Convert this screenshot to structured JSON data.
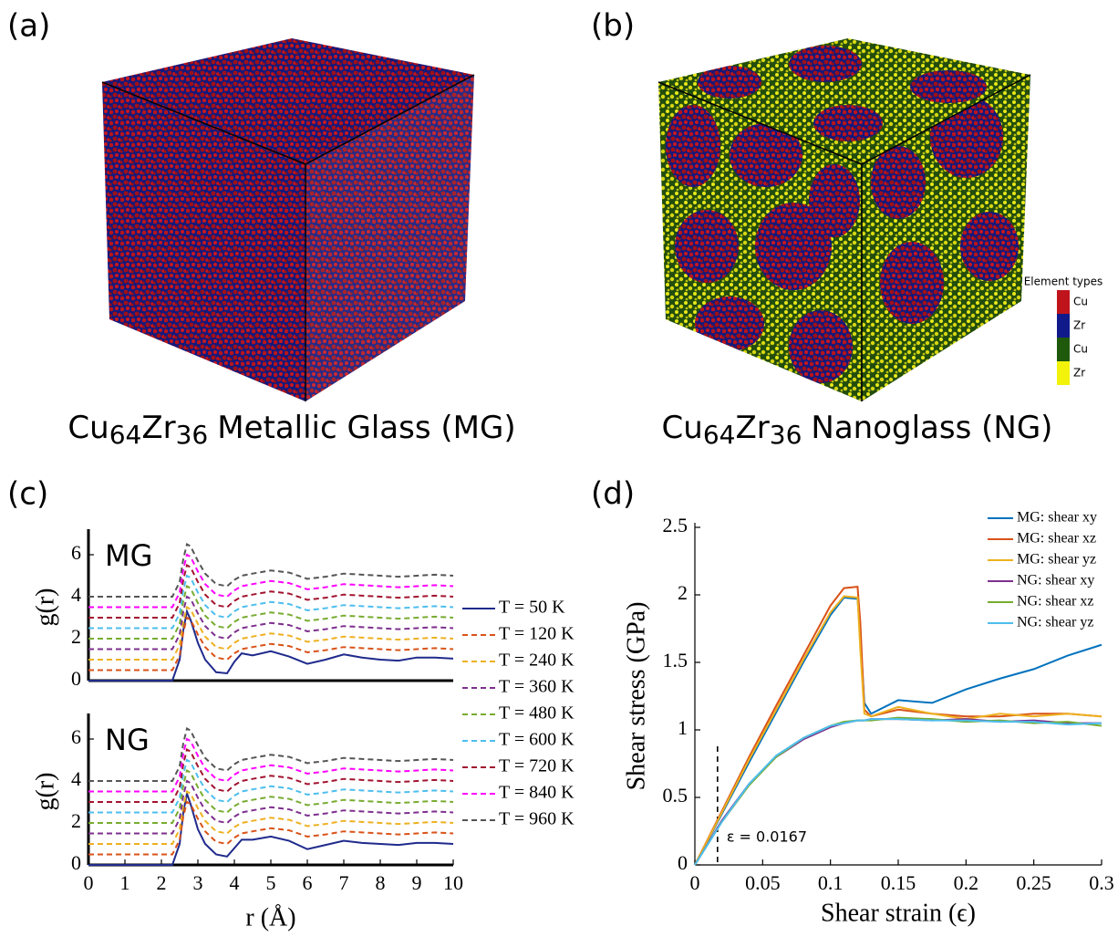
{
  "panels": {
    "a": "(a)",
    "b": "(b)",
    "c": "(c)",
    "d": "(d)"
  },
  "images": {
    "mg_caption": {
      "el1": "Cu",
      "sub1": "64",
      "el2": "Zr",
      "sub2": "36",
      "text": "Metallic Glass (MG)"
    },
    "ng_caption": {
      "el1": "Cu",
      "sub1": "64",
      "el2": "Zr",
      "sub2": "36",
      "text": "Nanoglass (NG)"
    },
    "element_legend": {
      "title": "Element types",
      "entries": [
        {
          "label": "Cu",
          "color": "#c0141c"
        },
        {
          "label": "Zr",
          "color": "#101a8a"
        },
        {
          "label": "Cu",
          "color": "#1f5a0c"
        },
        {
          "label": "Zr",
          "color": "#f2f20a"
        }
      ]
    }
  },
  "chart_data": [
    {
      "type": "line",
      "label": "MG",
      "ylabel": "g(r)",
      "x": [
        0,
        2,
        2.3,
        2.5,
        2.6,
        2.7,
        2.8,
        3.0,
        3.2,
        3.5,
        3.8,
        4.0,
        4.2,
        4.5,
        5.0,
        5.5,
        6.0,
        6.5,
        7.0,
        7.5,
        8.0,
        8.5,
        9.0,
        9.5,
        10
      ],
      "xlim": [
        0,
        10
      ],
      "ylim": [
        0,
        7
      ],
      "yticks": [
        0,
        2,
        4,
        6
      ],
      "series": [
        {
          "name": "T = 50 K",
          "color": "#1f2a8c",
          "values": [
            0,
            0,
            0,
            1.0,
            2.4,
            3.3,
            2.9,
            1.8,
            1.0,
            0.4,
            0.35,
            0.9,
            1.3,
            1.2,
            1.4,
            1.15,
            0.8,
            1.0,
            1.25,
            1.1,
            1.0,
            0.95,
            1.1,
            1.1,
            1.05
          ]
        },
        {
          "name": "T = 120 K",
          "color": "#d95319",
          "linestyle": "--",
          "values": [
            0.5,
            0.5,
            0.5,
            1.2,
            2.3,
            3.0,
            2.9,
            2.2,
            1.6,
            1.1,
            1.0,
            1.3,
            1.5,
            1.6,
            1.75,
            1.65,
            1.35,
            1.45,
            1.6,
            1.55,
            1.5,
            1.45,
            1.5,
            1.55,
            1.5
          ]
        },
        {
          "name": "T = 240 K",
          "color": "#edb120",
          "linestyle": "--",
          "values": [
            1,
            1,
            1,
            1.7,
            2.8,
            3.5,
            3.4,
            2.7,
            2.1,
            1.6,
            1.5,
            1.8,
            2.0,
            2.1,
            2.25,
            2.15,
            1.85,
            1.95,
            2.1,
            2.05,
            2.0,
            1.95,
            2.0,
            2.05,
            2.0
          ]
        },
        {
          "name": "T = 360 K",
          "color": "#7e2f8e",
          "linestyle": "--",
          "values": [
            1.5,
            1.5,
            1.5,
            2.2,
            3.3,
            4.0,
            3.9,
            3.2,
            2.6,
            2.1,
            2.0,
            2.3,
            2.5,
            2.6,
            2.75,
            2.65,
            2.35,
            2.45,
            2.6,
            2.55,
            2.5,
            2.45,
            2.5,
            2.55,
            2.5
          ]
        },
        {
          "name": "T = 480 K",
          "color": "#77ac30",
          "linestyle": "--",
          "values": [
            2,
            2,
            2,
            2.7,
            3.8,
            4.5,
            4.4,
            3.7,
            3.1,
            2.6,
            2.5,
            2.8,
            3.0,
            3.1,
            3.25,
            3.15,
            2.85,
            2.95,
            3.1,
            3.05,
            3.0,
            2.95,
            3.0,
            3.05,
            3.0
          ]
        },
        {
          "name": "T = 600 K",
          "color": "#4dbeee",
          "linestyle": "--",
          "values": [
            2.5,
            2.5,
            2.5,
            3.2,
            4.3,
            5.0,
            4.9,
            4.2,
            3.6,
            3.1,
            3.0,
            3.3,
            3.5,
            3.6,
            3.75,
            3.65,
            3.35,
            3.45,
            3.6,
            3.55,
            3.5,
            3.45,
            3.5,
            3.55,
            3.5
          ]
        },
        {
          "name": "T = 720 K",
          "color": "#a2142f",
          "linestyle": "--",
          "values": [
            3,
            3,
            3,
            3.7,
            4.8,
            5.5,
            5.4,
            4.7,
            4.1,
            3.6,
            3.5,
            3.8,
            4.0,
            4.1,
            4.25,
            4.15,
            3.85,
            3.95,
            4.1,
            4.05,
            4.0,
            3.95,
            4.0,
            4.05,
            4.0
          ]
        },
        {
          "name": "T = 840 K",
          "color": "#ff00ff",
          "linestyle": "--",
          "values": [
            3.5,
            3.5,
            3.5,
            4.2,
            5.3,
            6.0,
            5.9,
            5.2,
            4.6,
            4.1,
            4.0,
            4.3,
            4.5,
            4.6,
            4.75,
            4.65,
            4.35,
            4.45,
            4.6,
            4.55,
            4.5,
            4.45,
            4.5,
            4.55,
            4.5
          ]
        },
        {
          "name": "T = 960 K",
          "color": "#555555",
          "linestyle": "--",
          "values": [
            4,
            4,
            4,
            4.7,
            5.8,
            6.5,
            6.4,
            5.7,
            5.1,
            4.6,
            4.5,
            4.8,
            5.0,
            5.1,
            5.25,
            5.15,
            4.85,
            4.95,
            5.1,
            5.05,
            5.0,
            4.95,
            5.0,
            5.05,
            5.0
          ]
        }
      ]
    },
    {
      "type": "line",
      "label": "NG",
      "ylabel": "g(r)",
      "xlabel": "r (Å)",
      "x": [
        0,
        2,
        2.3,
        2.5,
        2.6,
        2.7,
        2.8,
        3.0,
        3.2,
        3.5,
        3.8,
        4.0,
        4.2,
        4.5,
        5.0,
        5.5,
        6.0,
        6.5,
        7.0,
        7.5,
        8.0,
        8.5,
        9.0,
        9.5,
        10
      ],
      "xlim": [
        0,
        10
      ],
      "ylim": [
        0,
        7
      ],
      "xticks": [
        0,
        1,
        2,
        3,
        4,
        5,
        6,
        7,
        8,
        9,
        10
      ],
      "yticks": [
        0,
        2,
        4,
        6
      ],
      "series": [
        {
          "color": "#1f2a8c",
          "values": [
            0,
            0,
            0,
            1.0,
            2.5,
            3.4,
            2.9,
            1.7,
            1.0,
            0.5,
            0.4,
            0.8,
            1.2,
            1.2,
            1.35,
            1.15,
            0.75,
            0.95,
            1.15,
            1.05,
            1.0,
            0.95,
            1.05,
            1.05,
            1.0
          ]
        },
        {
          "color": "#d95319",
          "linestyle": "--",
          "values": [
            0.5,
            0.5,
            0.5,
            1.2,
            2.3,
            3.0,
            2.9,
            2.2,
            1.6,
            1.1,
            1.0,
            1.3,
            1.5,
            1.6,
            1.75,
            1.65,
            1.35,
            1.45,
            1.6,
            1.55,
            1.5,
            1.45,
            1.5,
            1.55,
            1.5
          ]
        },
        {
          "color": "#edb120",
          "linestyle": "--",
          "values": [
            1,
            1,
            1,
            1.7,
            2.8,
            3.5,
            3.4,
            2.7,
            2.1,
            1.6,
            1.5,
            1.8,
            2.0,
            2.1,
            2.25,
            2.15,
            1.85,
            1.95,
            2.1,
            2.05,
            2.0,
            1.95,
            2.0,
            2.05,
            2.0
          ]
        },
        {
          "color": "#7e2f8e",
          "linestyle": "--",
          "values": [
            1.5,
            1.5,
            1.5,
            2.2,
            3.3,
            4.0,
            3.9,
            3.2,
            2.6,
            2.1,
            2.0,
            2.3,
            2.5,
            2.6,
            2.75,
            2.65,
            2.35,
            2.45,
            2.6,
            2.55,
            2.5,
            2.45,
            2.5,
            2.55,
            2.5
          ]
        },
        {
          "color": "#77ac30",
          "linestyle": "--",
          "values": [
            2,
            2,
            2,
            2.7,
            3.8,
            4.5,
            4.4,
            3.7,
            3.1,
            2.6,
            2.5,
            2.8,
            3.0,
            3.1,
            3.25,
            3.15,
            2.85,
            2.95,
            3.1,
            3.05,
            3.0,
            2.95,
            3.0,
            3.05,
            3.0
          ]
        },
        {
          "color": "#4dbeee",
          "linestyle": "--",
          "values": [
            2.5,
            2.5,
            2.5,
            3.2,
            4.3,
            5.0,
            4.9,
            4.2,
            3.6,
            3.1,
            3.0,
            3.3,
            3.5,
            3.6,
            3.75,
            3.65,
            3.35,
            3.45,
            3.6,
            3.55,
            3.5,
            3.45,
            3.5,
            3.55,
            3.5
          ]
        },
        {
          "color": "#a2142f",
          "linestyle": "--",
          "values": [
            3,
            3,
            3,
            3.7,
            4.8,
            5.5,
            5.4,
            4.7,
            4.1,
            3.6,
            3.5,
            3.8,
            4.0,
            4.1,
            4.25,
            4.15,
            3.85,
            3.95,
            4.1,
            4.05,
            4.0,
            3.95,
            4.0,
            4.05,
            4.0
          ]
        },
        {
          "color": "#ff00ff",
          "linestyle": "--",
          "values": [
            3.5,
            3.5,
            3.5,
            4.2,
            5.3,
            6.0,
            5.9,
            5.2,
            4.6,
            4.1,
            4.0,
            4.3,
            4.5,
            4.6,
            4.75,
            4.65,
            4.35,
            4.45,
            4.6,
            4.55,
            4.5,
            4.45,
            4.5,
            4.55,
            4.5
          ]
        },
        {
          "color": "#555555",
          "linestyle": "--",
          "values": [
            4,
            4,
            4,
            4.7,
            5.8,
            6.5,
            6.4,
            5.7,
            5.1,
            4.6,
            4.5,
            4.8,
            5.0,
            5.1,
            5.25,
            5.15,
            4.85,
            4.95,
            5.1,
            5.05,
            5.0,
            4.95,
            5.0,
            5.05,
            5.0
          ]
        }
      ]
    },
    {
      "type": "line",
      "ylabel": "Shear stress (GPa)",
      "xlabel": "Shear strain (ϵ)",
      "x": [
        0,
        0.02,
        0.04,
        0.06,
        0.08,
        0.1,
        0.11,
        0.12,
        0.122,
        0.125,
        0.13,
        0.15,
        0.175,
        0.2,
        0.225,
        0.25,
        0.275,
        0.3
      ],
      "xlim": [
        0,
        0.3
      ],
      "ylim": [
        0,
        2.5
      ],
      "xticks": [
        0,
        0.05,
        0.1,
        0.15,
        0.2,
        0.25,
        0.3
      ],
      "yticks": [
        0,
        0.5,
        1,
        1.5,
        2,
        2.5
      ],
      "vline": {
        "x": 0.0167,
        "label": "ε = 0.0167"
      },
      "series": [
        {
          "name": "MG: shear xy",
          "color": "#0072bd",
          "values": [
            0,
            0.38,
            0.76,
            1.13,
            1.5,
            1.85,
            1.98,
            1.97,
            1.7,
            1.2,
            1.12,
            1.22,
            1.2,
            1.3,
            1.38,
            1.45,
            1.55,
            1.63
          ]
        },
        {
          "name": "MG: shear xz",
          "color": "#d95319",
          "values": [
            0,
            0.4,
            0.8,
            1.18,
            1.55,
            1.92,
            2.05,
            2.06,
            1.8,
            1.15,
            1.1,
            1.15,
            1.12,
            1.1,
            1.1,
            1.12,
            1.12,
            1.1
          ]
        },
        {
          "name": "MG: shear yz",
          "color": "#edb120",
          "values": [
            0,
            0.39,
            0.78,
            1.15,
            1.52,
            1.87,
            1.99,
            1.98,
            1.6,
            1.12,
            1.1,
            1.17,
            1.12,
            1.08,
            1.12,
            1.1,
            1.12,
            1.1
          ]
        },
        {
          "name": "NG: shear xy",
          "color": "#7e2f8e",
          "values": [
            0,
            0.33,
            0.6,
            0.8,
            0.93,
            1.02,
            1.05,
            1.07,
            1.07,
            1.07,
            1.08,
            1.08,
            1.07,
            1.08,
            1.06,
            1.07,
            1.05,
            1.05
          ]
        },
        {
          "name": "NG: shear xz",
          "color": "#77ac30",
          "values": [
            0,
            0.32,
            0.59,
            0.8,
            0.94,
            1.03,
            1.06,
            1.07,
            1.07,
            1.07,
            1.07,
            1.09,
            1.08,
            1.06,
            1.07,
            1.05,
            1.06,
            1.03
          ]
        },
        {
          "name": "NG: shear yz",
          "color": "#4dbeee",
          "values": [
            0,
            0.32,
            0.6,
            0.81,
            0.94,
            1.03,
            1.05,
            1.07,
            1.07,
            1.07,
            1.08,
            1.08,
            1.07,
            1.07,
            1.06,
            1.06,
            1.04,
            1.05
          ]
        }
      ]
    }
  ]
}
